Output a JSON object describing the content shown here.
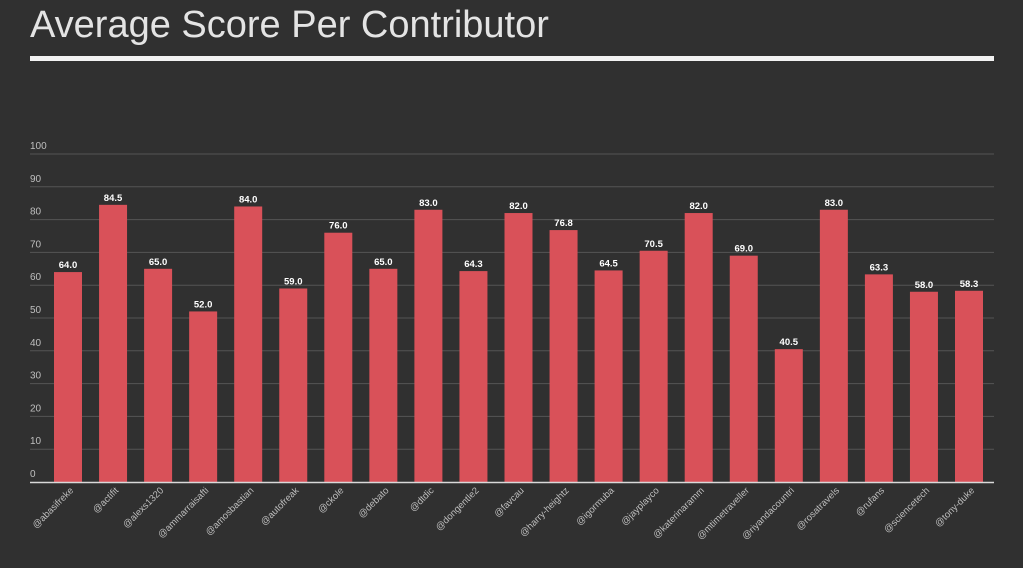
{
  "chart_data": {
    "type": "bar",
    "title": "Average Score Per Contributor",
    "xlabel": "",
    "ylabel": "",
    "ylim": [
      0,
      100
    ],
    "yticks": [
      0,
      10,
      20,
      30,
      40,
      50,
      60,
      70,
      80,
      90,
      100
    ],
    "grid": true,
    "categories": [
      "@abasifreke",
      "@actifit",
      "@alexs1320",
      "@ammarraisafti",
      "@amosbastian",
      "@autofreak",
      "@ckole",
      "@debato",
      "@dtdic",
      "@dongentle2",
      "@favcau",
      "@harry-heightz",
      "@igormuba",
      "@jayplayco",
      "@katerinaramm",
      "@mtimetraveller",
      "@riyandacountri",
      "@rosatravels",
      "@rufans",
      "@sciencetech",
      "@tony-duke"
    ],
    "values": [
      64.0,
      84.5,
      65.0,
      52.0,
      84.0,
      59.0,
      76.0,
      65.0,
      83.0,
      64.3,
      82.0,
      76.8,
      64.5,
      70.5,
      82.0,
      69.0,
      40.5,
      83.0,
      63.3,
      58.0,
      58.3
    ],
    "value_labels": [
      "64.0",
      "84.5",
      "65.0",
      "52.0",
      "84.0",
      "59.0",
      "76.0",
      "65.0",
      "83.0",
      "64.3",
      "82.0",
      "76.8",
      "64.5",
      "70.5",
      "82.0",
      "69.0",
      "40.5",
      "83.0",
      "63.3",
      "58.0",
      "58.3"
    ],
    "colors": {
      "bar": "#d95159",
      "background": "#303030",
      "grid": "#545454",
      "axis": "#d9d9d9",
      "tick_text": "#bfbfbf",
      "label_text": "#ffffff"
    }
  }
}
